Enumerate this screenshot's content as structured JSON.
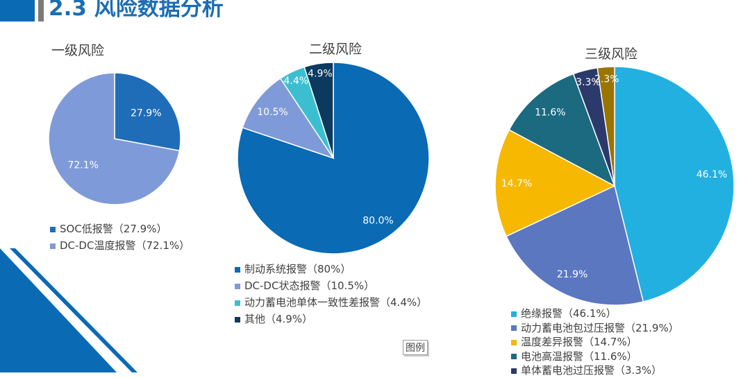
{
  "header": {
    "title": "2.3 风险数据分析"
  },
  "legend_button": "图例",
  "colors": {
    "brand": "#0A6AB4",
    "title": "#1B6DB5"
  },
  "chart_data": [
    {
      "type": "pie",
      "title": "一级风险",
      "legend_placement": "bottom",
      "slices": [
        {
          "label": "27.9%",
          "legend": "SOC低报警（27.9%）",
          "value": 27.9,
          "color": "#1F6DB8"
        },
        {
          "label": "72.1%",
          "legend": "DC-DC温度报警（72.1%）",
          "value": 72.1,
          "color": "#7F9AD8"
        }
      ]
    },
    {
      "type": "pie",
      "title": "二级风险",
      "legend_placement": "bottom",
      "slices": [
        {
          "label": "80.0%",
          "legend": "制动系统报警（80%）",
          "value": 80.0,
          "color": "#0A6AB4"
        },
        {
          "label": "10.5%",
          "legend": "DC-DC状态报警（10.5%）",
          "value": 10.5,
          "color": "#7F9AD8"
        },
        {
          "label": "4.4%",
          "legend": "动力蓄电池单体一致性差报警（4.4%）",
          "value": 4.4,
          "color": "#3BBFD0"
        },
        {
          "label": "4.9%",
          "legend": "其他（4.9%）",
          "value": 4.9,
          "color": "#0B3A5E"
        }
      ]
    },
    {
      "type": "pie",
      "title": "三级风险",
      "legend_placement": "bottom",
      "slices": [
        {
          "label": "46.1%",
          "legend": "绝缘报警（46.1%）",
          "value": 46.1,
          "color": "#22B0E0"
        },
        {
          "label": "21.9%",
          "legend": "动力蓄电池包过压报警（21.9%）",
          "value": 21.9,
          "color": "#5B77C0"
        },
        {
          "label": "14.7%",
          "legend": "温度差异报警（14.7%）",
          "value": 14.7,
          "color": "#F6B800"
        },
        {
          "label": "11.6%",
          "legend": "电池高温报警（11.6%）",
          "value": 11.6,
          "color": "#1B6A80"
        },
        {
          "label": "3.3%",
          "legend": "单体蓄电池过压报警（3.3%）",
          "value": 3.3,
          "color": "#2B3A6B"
        },
        {
          "label": "2.3%",
          "value": 2.3,
          "color": "#9A7400"
        }
      ]
    }
  ]
}
